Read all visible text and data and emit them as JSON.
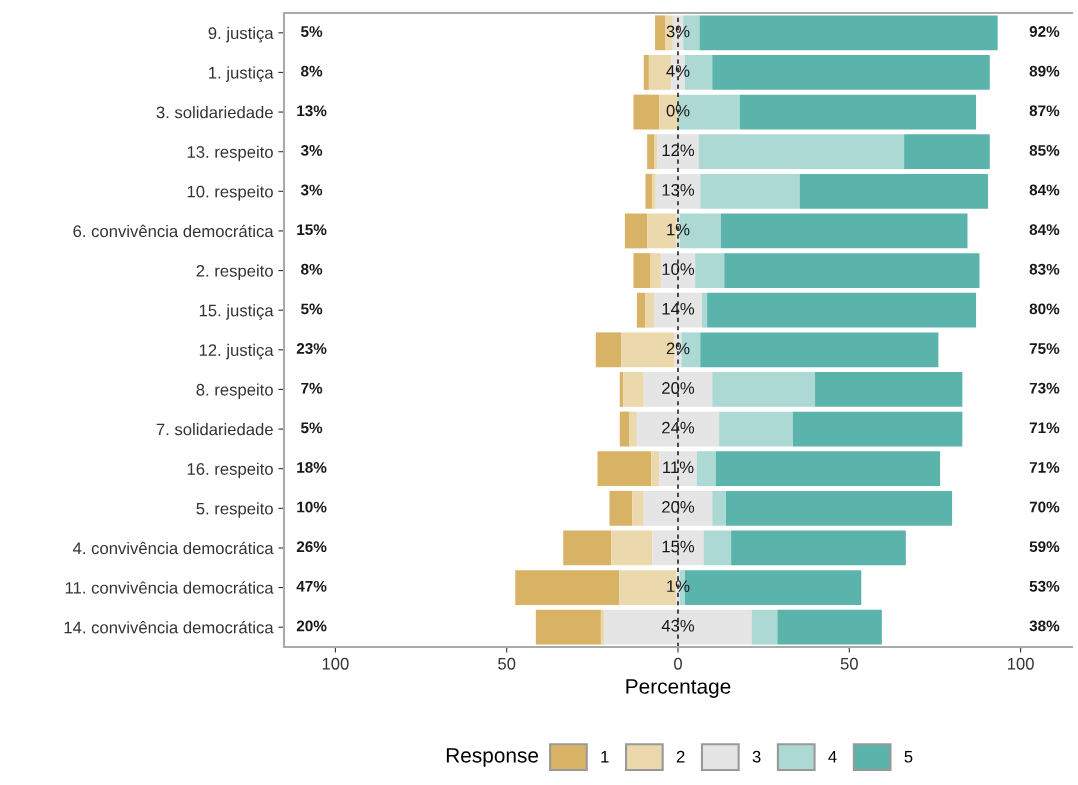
{
  "chart_data": {
    "type": "bar",
    "orientation": "horizontal",
    "xlabel": "Percentage",
    "legend_title": "Response",
    "legend": "bottom",
    "categories": [
      "9. justiça",
      "1. justiça",
      "3. solidariedade",
      "13. respeito",
      "10. respeito",
      "6. convivência democrática",
      "2. respeito",
      "15. justiça",
      "12. justiça",
      "8. respeito",
      "7. solidariedade",
      "16. respeito",
      "5. respeito",
      "4. convivência democrática",
      "11. convivência democrática",
      "14. convivência democrática"
    ],
    "series": [
      {
        "name": "1",
        "color": "#d8b365",
        "values": [
          2.9,
          1.5,
          7.5,
          2,
          2,
          6.5,
          5,
          2.5,
          7.5,
          1,
          2.7,
          15.7,
          6.7,
          14,
          30.4,
          19
        ],
        "base": [
          -6.7,
          -10,
          -13,
          -9,
          -9.5,
          -15.5,
          -13,
          -12,
          -24,
          -17,
          -17,
          -23.5,
          -20,
          -33.5,
          -47.5,
          -41.5
        ]
      },
      {
        "name": "2",
        "color": "#ebd9ad",
        "values": [
          2.3,
          6.5,
          5.5,
          1,
          1,
          8.5,
          3,
          2.5,
          15.5,
          6,
          2.3,
          2.3,
          3.3,
          12,
          16.6,
          1
        ],
        "base": [
          -3.8,
          -8.5,
          -5.5,
          -7,
          -7.5,
          -9,
          -8,
          -9.5,
          -16.5,
          -16,
          -14.3,
          -7.8,
          -13.3,
          -19.5,
          -17.1,
          -22.5
        ]
      },
      {
        "name": "3",
        "color": "#e5e5e5",
        "values": [
          3,
          4,
          0,
          12,
          13,
          1,
          10,
          14,
          2,
          20,
          24,
          11,
          20,
          15,
          1,
          43
        ],
        "base": [
          -1.5,
          -2,
          null,
          -6,
          -6.5,
          -0.5,
          -5,
          -7,
          -1,
          -10,
          -12,
          -5.5,
          -10,
          -7.5,
          -0.5,
          -21.5
        ],
        "value_labels": [
          "3%",
          "4%",
          "0%",
          "12%",
          "13%",
          "1%",
          "10%",
          "14%",
          "2%",
          "20%",
          "24%",
          "11%",
          "20%",
          "15%",
          "1%",
          "43%"
        ]
      },
      {
        "name": "4",
        "color": "#add9d5",
        "values": [
          4.8,
          8,
          18,
          60,
          29,
          12,
          8.5,
          1.5,
          5.5,
          30,
          21.5,
          5.5,
          4,
          8,
          1.5,
          7.5
        ],
        "base": [
          1.5,
          2,
          0,
          6,
          6.5,
          0.5,
          5,
          7,
          1,
          10,
          12,
          5.5,
          10,
          7.5,
          0.5,
          21.5
        ]
      },
      {
        "name": "5",
        "color": "#5ab4ac",
        "values": [
          87,
          81,
          69,
          25,
          55,
          72,
          74.5,
          78.5,
          69.5,
          43,
          49.5,
          65.5,
          66,
          51,
          51.5,
          30.5
        ],
        "base": [
          6.3,
          10,
          18,
          66,
          35.5,
          12.5,
          13.5,
          8.5,
          6.5,
          40,
          33.5,
          11,
          14,
          15.5,
          2,
          29
        ]
      }
    ],
    "xlim": [
      -115,
      115
    ],
    "xticks": [
      {
        "value": -100,
        "label": "100"
      },
      {
        "value": -50,
        "label": "50"
      },
      0,
      50,
      100
    ],
    "ref_lines": [
      {
        "axis": "x",
        "value": 0,
        "color": "#000000",
        "line_style": "dashed"
      }
    ],
    "annotations": [
      "5%",
      "8%",
      "13%",
      "3%",
      "3%",
      "15%",
      "8%",
      "5%",
      "23%",
      "7%",
      "5%",
      "18%",
      "10%",
      "26%",
      "47%",
      "20%",
      "92%",
      "89%",
      "87%",
      "85%",
      "84%",
      "84%",
      "83%",
      "80%",
      "75%",
      "73%",
      "71%",
      "71%",
      "70%",
      "59%",
      "53%",
      "38%"
    ]
  }
}
